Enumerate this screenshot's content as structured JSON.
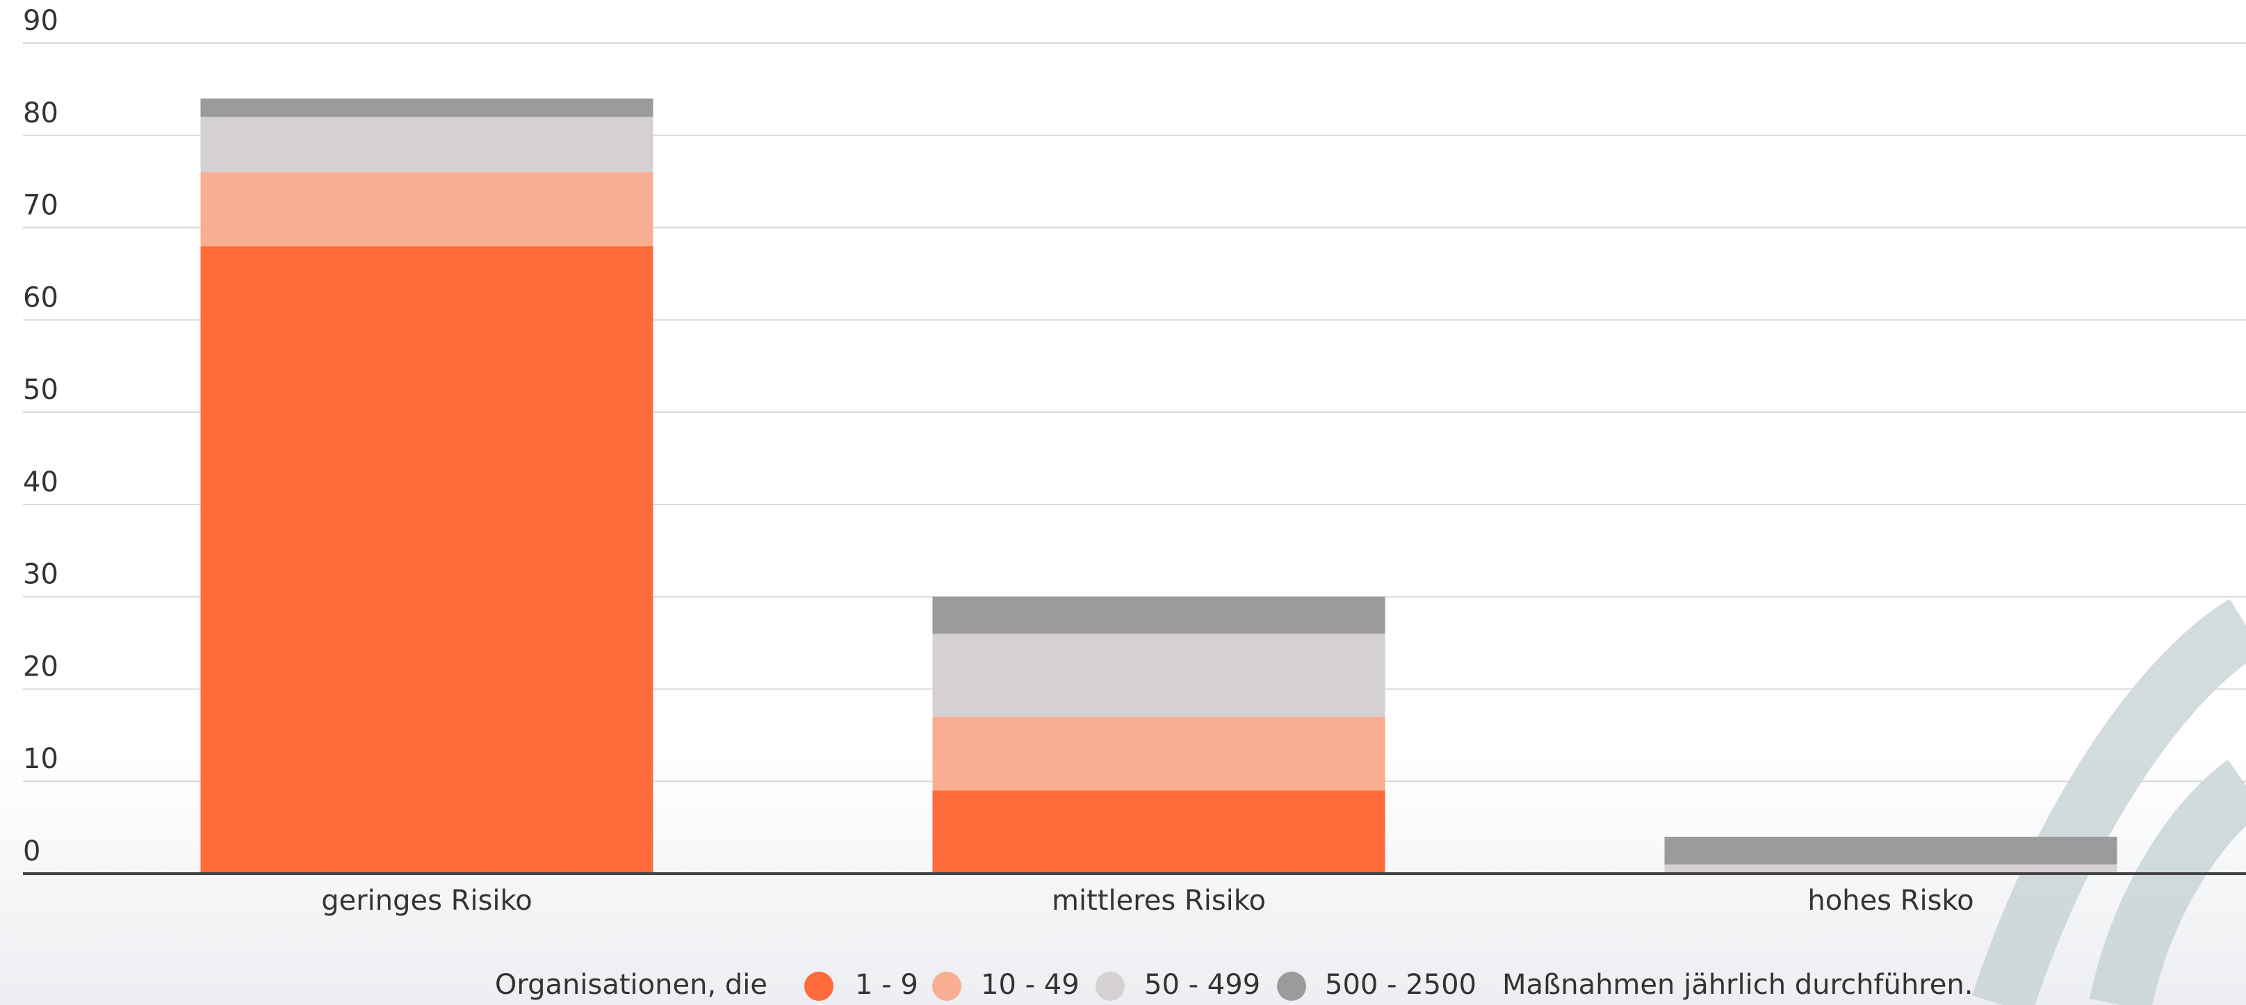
{
  "chart_data": {
    "type": "stacked_bar",
    "categories": [
      "geringes Risiko",
      "mittleres Risiko",
      "hohes Risko"
    ],
    "series": [
      {
        "name": "1 - 9",
        "color": "#ff6b3a",
        "values": [
          68,
          9,
          0
        ]
      },
      {
        "name": "10 - 49",
        "color": "#f9ae92",
        "values": [
          8,
          8,
          0
        ]
      },
      {
        "name": "50 - 499",
        "color": "#d5d1d0",
        "values": [
          6,
          9,
          1
        ]
      },
      {
        "name": "500 - 2500",
        "color": "#9b9b9b",
        "values": [
          2,
          4,
          3
        ]
      }
    ],
    "ylim": [
      0,
      90
    ],
    "yticks": [
      0,
      10,
      20,
      30,
      40,
      50,
      60,
      70,
      80,
      90
    ],
    "grid": true,
    "legend_prefix": "Organisationen, die",
    "legend_suffix": "Maßnahmen jährlich durchführen.",
    "legend": "bottom"
  }
}
